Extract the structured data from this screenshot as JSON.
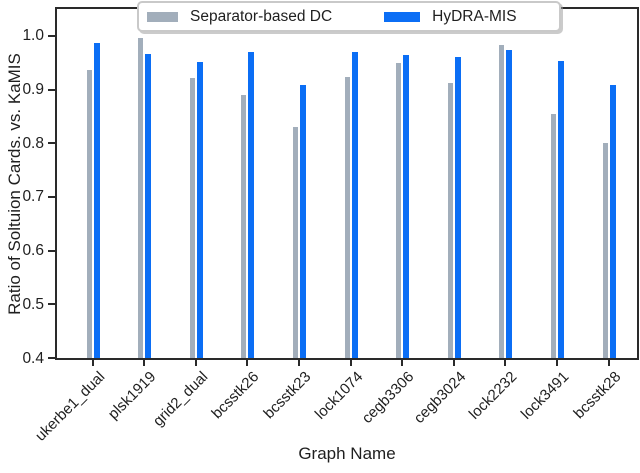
{
  "figure": {
    "xlabel": "Graph Name",
    "ylabel": "Ratio of Soltuion Cards. vs. KaMIS"
  },
  "legend": {
    "items": [
      {
        "label": "Separator-based DC",
        "color": "#a2aebb"
      },
      {
        "label": "HyDRA-MIS",
        "color": "#0b6ef5"
      }
    ]
  },
  "chart_data": {
    "type": "bar",
    "title": "",
    "xlabel": "Graph Name",
    "ylabel": "Ratio of Soltuion Cards. vs. KaMIS",
    "categories": [
      "ukerbe1_dual",
      "plsk1919",
      "grid2_dual",
      "bcsstk26",
      "bcsstk23",
      "lock1074",
      "cegb3306",
      "cegb3024",
      "lock2232",
      "lock3491",
      "bcsstk28"
    ],
    "series": [
      {
        "name": "Separator-based DC",
        "color": "#a2aebb",
        "values": [
          0.937,
          0.996,
          0.921,
          0.889,
          0.83,
          0.924,
          0.949,
          0.912,
          0.983,
          0.855,
          0.8
        ]
      },
      {
        "name": "HyDRA-MIS",
        "color": "#0b6ef5",
        "values": [
          0.986,
          0.966,
          0.952,
          0.97,
          0.908,
          0.97,
          0.964,
          0.961,
          0.973,
          0.953,
          0.908
        ]
      }
    ],
    "ylim": [
      0.4,
      1.05
    ],
    "yticks": [
      "0.4",
      "0.5",
      "0.6",
      "0.7",
      "0.8",
      "0.9",
      "1.0"
    ],
    "grid": false,
    "legend_position": "top-center",
    "axis_color": "#2a2a2a"
  }
}
